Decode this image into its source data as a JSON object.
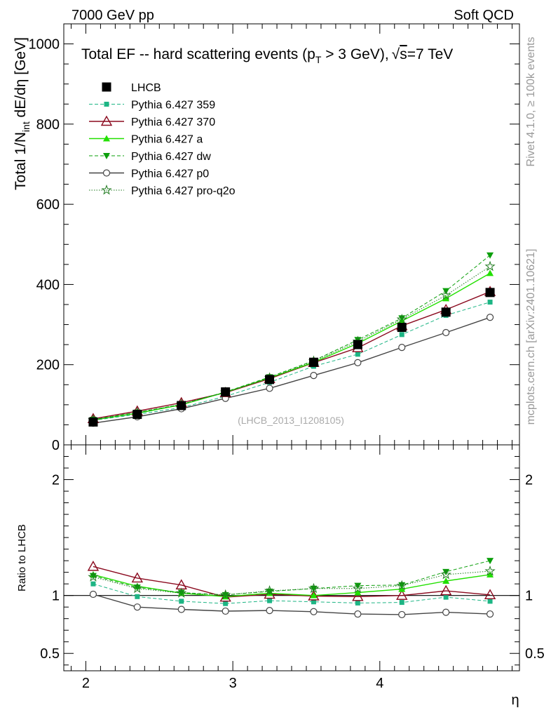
{
  "header": {
    "left": "7000 GeV pp",
    "right": "Soft QCD"
  },
  "side_labels": {
    "rivet": "Rivet 4.1.0, ≥ 100k events",
    "mcplots": "mcplots.cern.ch [arXiv:2401.10621]"
  },
  "watermark": "(LHCB_2013_I1208105)",
  "colors": {
    "data": "#000000",
    "p359": "#1db584",
    "p370": "#8b0a1f",
    "pa": "#22e000",
    "pdw": "#0b9f0b",
    "pp0": "#444444",
    "pq2o": "#1f7a1f"
  },
  "chart_data": {
    "type": "line",
    "title": "Total EF -- hard scattering events (p_T > 3 GeV), √s=7 TeV",
    "title_parts": {
      "main": "Total EF -- hard scattering events (p",
      "sub": "T",
      "tail": " > 3 GeV),",
      "sqrt": "√",
      "s_label": "s",
      "energy": "=7 TeV"
    },
    "xlabel": "η",
    "ylabel": "Total 1/N_int dE/dη [GeV]",
    "ylabel_parts": {
      "pre": "Total 1/N",
      "sub": "int",
      "post": "  dE/dη [GeV]"
    },
    "ratio_ylabel": "Ratio to LHCB",
    "xlim": [
      1.85,
      4.95
    ],
    "ylim": [
      0,
      1050
    ],
    "ratio_ylim": [
      0.35,
      2.3
    ],
    "xticks": [
      2,
      3,
      4
    ],
    "xtick_labels": [
      "2",
      "3",
      "4"
    ],
    "yticks": [
      0,
      200,
      400,
      600,
      800,
      1000
    ],
    "ytick_labels": [
      "0",
      "200",
      "400",
      "600",
      "800",
      "1000"
    ],
    "ratio_yticks": [
      0.5,
      1,
      2
    ],
    "ratio_ytick_labels": [
      "0.5",
      "1",
      "2"
    ],
    "x": [
      2.05,
      2.35,
      2.65,
      2.95,
      3.25,
      3.55,
      3.85,
      4.15,
      4.45,
      4.75
    ],
    "legend_position": "top-left",
    "series": [
      {
        "name": "LHCB",
        "key": "data",
        "marker": "square-filled",
        "dash": "",
        "width": 0,
        "values": [
          57,
          76,
          98,
          132,
          163,
          206,
          250,
          293,
          331,
          380
        ],
        "ratio": [
          1,
          1,
          1,
          1,
          1,
          1,
          1,
          1,
          1,
          1
        ]
      },
      {
        "name": "Pythia 6.427 359",
        "key": "p359",
        "marker": "square-small",
        "dash": "5,3",
        "width": 1,
        "values": [
          61,
          76,
          93,
          121,
          156,
          196,
          226,
          275,
          323,
          356
        ],
        "ratio": [
          1.1,
          0.99,
          0.95,
          0.93,
          0.955,
          0.945,
          0.935,
          0.94,
          0.985,
          0.95
        ]
      },
      {
        "name": "Pythia 6.427 370",
        "key": "p370",
        "marker": "triangle-open",
        "dash": "",
        "width": 1.4,
        "values": [
          65,
          84,
          105,
          130,
          165,
          205,
          242,
          297,
          337,
          382
        ],
        "ratio": [
          1.25,
          1.15,
          1.09,
          0.985,
          1.01,
          0.995,
          0.99,
          1.0,
          1.04,
          1.005
        ]
      },
      {
        "name": "Pythia 6.427 a",
        "key": "pa",
        "marker": "triangle-filled",
        "dash": "",
        "width": 1.4,
        "values": [
          62,
          79,
          100,
          131,
          167,
          206,
          253,
          309,
          365,
          428
        ],
        "ratio": [
          1.18,
          1.08,
          1.02,
          0.99,
          1.02,
          1.0,
          1.025,
          1.055,
          1.125,
          1.18
        ]
      },
      {
        "name": "Pythia 6.427 dw",
        "key": "pdw",
        "marker": "triangle-down-filled",
        "dash": "5,3",
        "width": 1,
        "values": [
          63,
          81,
          101,
          132,
          169,
          210,
          262,
          316,
          384,
          473
        ],
        "ratio": [
          1.17,
          1.07,
          1.025,
          1.005,
          1.035,
          1.06,
          1.085,
          1.09,
          1.205,
          1.3
        ]
      },
      {
        "name": "Pythia 6.427 p0",
        "key": "pp0",
        "marker": "circle-open",
        "dash": "",
        "width": 1.4,
        "values": [
          54,
          70,
          90,
          116,
          141,
          173,
          205,
          243,
          280,
          318
        ],
        "ratio": [
          1.01,
          0.9,
          0.88,
          0.865,
          0.87,
          0.86,
          0.84,
          0.835,
          0.855,
          0.84
        ]
      },
      {
        "name": "Pythia 6.427 pro-q2o",
        "key": "pq2o",
        "marker": "star-open",
        "dash": "1.5,2",
        "width": 1,
        "values": [
          62,
          80,
          101,
          131,
          167,
          209,
          258,
          313,
          373,
          445
        ],
        "ratio": [
          1.16,
          1.06,
          1.02,
          1.005,
          1.04,
          1.06,
          1.06,
          1.085,
          1.18,
          1.21
        ]
      }
    ]
  }
}
